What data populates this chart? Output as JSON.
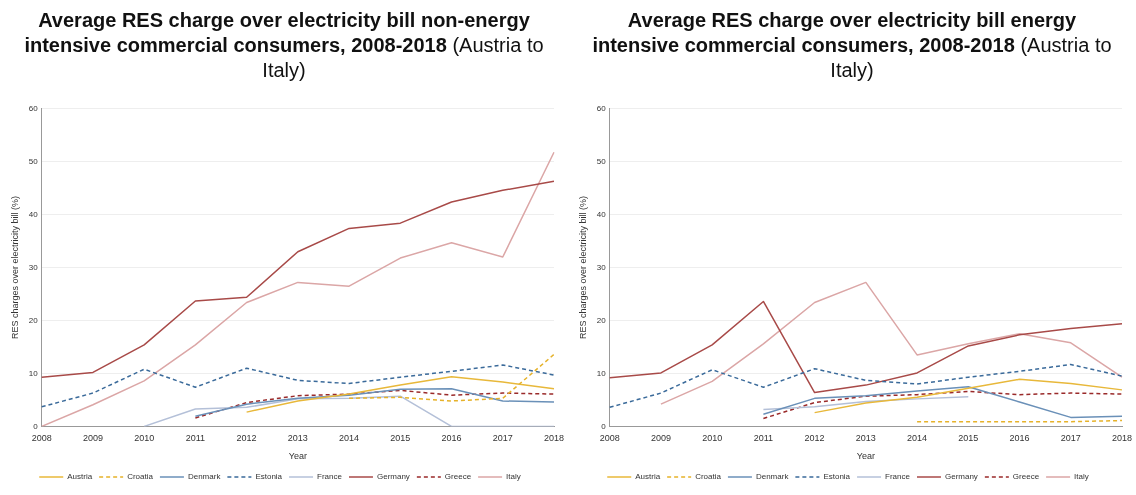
{
  "chart_data": [
    {
      "type": "line",
      "title": "Average RES charge over electricity bill non-energy intensive commercial consumers, 2008-2018",
      "subtitle": "(Austria to Italy)",
      "xlabel": "Year",
      "ylabel": "RES charges over electricity bill (%)",
      "categories": [
        "2008",
        "2009",
        "2010",
        "2011",
        "2012",
        "2013",
        "2014",
        "2015",
        "2016",
        "2017",
        "2018"
      ],
      "ylim": [
        0,
        60
      ],
      "yticks": [
        0,
        10,
        20,
        30,
        40,
        50,
        60
      ],
      "grid": "y",
      "legend": "bottom",
      "marker": "none",
      "series": [
        {
          "name": "Austria",
          "color": "#e8b83a",
          "line_style": "solid",
          "values": [
            null,
            null,
            null,
            null,
            2.7,
            4.8,
            6.1,
            7.8,
            9.4,
            8.4,
            7.1
          ]
        },
        {
          "name": "Croatia",
          "color": "#e6b22a",
          "line_style": "dashed",
          "values": [
            null,
            null,
            null,
            null,
            null,
            null,
            5.3,
            5.5,
            4.8,
            5.3,
            13.6
          ]
        },
        {
          "name": "Denmark",
          "color": "#6a90b8",
          "line_style": "solid",
          "values": [
            null,
            null,
            null,
            1.9,
            4.2,
            5.3,
            5.9,
            7.0,
            7.1,
            4.8,
            4.6
          ]
        },
        {
          "name": "Estonia",
          "color": "#3a6a9a",
          "line_style": "dashed",
          "values": [
            3.7,
            6.3,
            10.8,
            7.4,
            11.0,
            8.7,
            8.1,
            9.3,
            10.4,
            11.6,
            9.7
          ]
        },
        {
          "name": "France",
          "color": "#b4c0d8",
          "line_style": "solid",
          "values": [
            null,
            null,
            0,
            3.3,
            3.6,
            5.2,
            5.3,
            5.7,
            0,
            0,
            0
          ]
        },
        {
          "name": "Germany",
          "color": "#a84a48",
          "line_style": "solid",
          "values": [
            9.3,
            10.2,
            15.4,
            23.7,
            24.4,
            33.0,
            37.4,
            38.4,
            42.4,
            44.6,
            46.3
          ]
        },
        {
          "name": "Greece",
          "color": "#9a2a2a",
          "line_style": "dashed",
          "values": [
            null,
            null,
            null,
            1.6,
            4.5,
            5.8,
            6.1,
            6.8,
            5.9,
            6.3,
            6.1
          ]
        },
        {
          "name": "Italy",
          "color": "#dba6a6",
          "line_style": "solid",
          "values": [
            0,
            4.1,
            8.6,
            15.4,
            23.4,
            27.2,
            26.5,
            31.8,
            34.7,
            32.0,
            51.8
          ]
        }
      ]
    },
    {
      "type": "line",
      "title": "Average RES charge over electricity bill energy intensive commercial consumers, 2008-2018",
      "subtitle": "(Austria to Italy)",
      "xlabel": "Year",
      "ylabel": "RES charges over electricity bill (%)",
      "categories": [
        "2008",
        "2009",
        "2010",
        "2011",
        "2012",
        "2013",
        "2014",
        "2015",
        "2016",
        "2017",
        "2018"
      ],
      "ylim": [
        0,
        60
      ],
      "yticks": [
        0,
        10,
        20,
        30,
        40,
        50,
        60
      ],
      "grid": "y",
      "legend": "bottom",
      "marker": "none",
      "series": [
        {
          "name": "Austria",
          "color": "#e8b83a",
          "line_style": "solid",
          "values": [
            null,
            null,
            null,
            null,
            2.6,
            4.4,
            5.5,
            7.2,
            8.9,
            8.1,
            6.9
          ]
        },
        {
          "name": "Croatia",
          "color": "#e6b22a",
          "line_style": "dashed",
          "values": [
            null,
            null,
            null,
            null,
            null,
            null,
            0.9,
            0.9,
            0.9,
            0.9,
            1.1
          ]
        },
        {
          "name": "Denmark",
          "color": "#6a90b8",
          "line_style": "solid",
          "values": [
            null,
            null,
            null,
            2.3,
            5.3,
            5.8,
            6.7,
            7.5,
            4.6,
            1.7,
            1.9
          ]
        },
        {
          "name": "Estonia",
          "color": "#3a6a9a",
          "line_style": "dashed",
          "values": [
            3.6,
            6.3,
            10.7,
            7.4,
            10.9,
            8.7,
            8.0,
            9.3,
            10.4,
            11.7,
            9.5
          ]
        },
        {
          "name": "France",
          "color": "#b4c0d8",
          "line_style": "solid",
          "values": [
            null,
            null,
            null,
            3.2,
            3.7,
            4.7,
            5.2,
            5.6,
            null,
            null,
            null
          ]
        },
        {
          "name": "Germany",
          "color": "#a84a48",
          "line_style": "solid",
          "values": [
            9.2,
            10.1,
            15.4,
            23.6,
            6.4,
            7.8,
            10.1,
            15.2,
            17.3,
            18.5,
            19.4
          ]
        },
        {
          "name": "Greece",
          "color": "#9a2a2a",
          "line_style": "dashed",
          "values": [
            null,
            null,
            null,
            1.5,
            4.5,
            5.7,
            6.0,
            6.6,
            6.0,
            6.3,
            6.1
          ]
        },
        {
          "name": "Italy",
          "color": "#dba6a6",
          "line_style": "solid",
          "values": [
            null,
            4.2,
            8.5,
            15.6,
            23.4,
            27.2,
            13.5,
            15.6,
            17.5,
            15.8,
            9.3
          ]
        }
      ]
    }
  ]
}
